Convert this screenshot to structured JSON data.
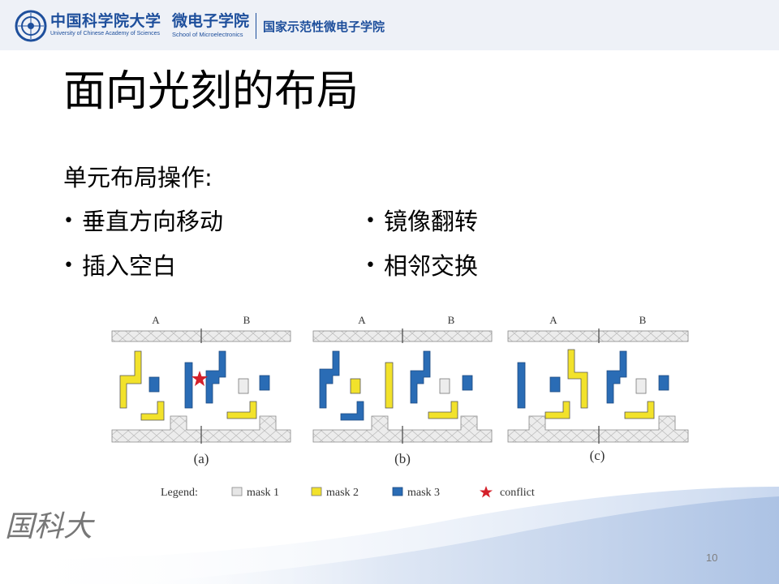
{
  "header": {
    "university_cn": "中国科学院大学",
    "university_en": "University of Chinese Academy of Sciences",
    "school_cn": "微电子学院",
    "school_en": "School of Microelectronics",
    "demo_school": "国家示范性微电子学院"
  },
  "slide": {
    "title": "面向光刻的布局",
    "subtitle": "单元布局操作:",
    "bullets": [
      "垂直方向移动",
      "镜像翻转",
      "插入空白",
      "相邻交换"
    ],
    "page_number": "10",
    "footer_logo": "国科大"
  },
  "figure": {
    "panels": [
      {
        "caption": "(a)",
        "left_label": "A",
        "right_label": "B"
      },
      {
        "caption": "(b)",
        "left_label": "A",
        "right_label": "B"
      },
      {
        "caption": "(c)",
        "left_label": "A",
        "right_label": "B"
      }
    ],
    "legend": {
      "label": "Legend:",
      "items": [
        {
          "label": "mask 1",
          "color": "#e6e6e6"
        },
        {
          "label": "mask 2",
          "color": "#f2e22b"
        },
        {
          "label": "mask 3",
          "color": "#2a6cb5"
        },
        {
          "label": "conflict",
          "color": "#d4202a"
        }
      ]
    }
  },
  "colors": {
    "brand": "#1e4f9c",
    "mask1": "#e6e6e6",
    "mask2": "#f2e22b",
    "mask3": "#2a6cb5",
    "conflict": "#d4202a"
  }
}
